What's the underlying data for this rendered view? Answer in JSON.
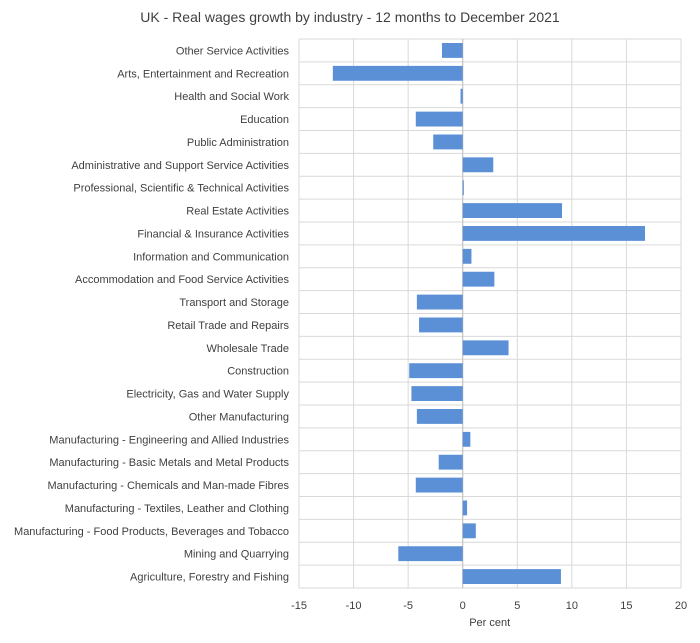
{
  "chart_data": {
    "type": "bar",
    "orientation": "horizontal",
    "title": "UK - Real wages growth by industry - 12 months to December 2021",
    "xlabel": "Per cent",
    "ylabel": "",
    "xlim": [
      -15,
      20
    ],
    "xticks": [
      -15,
      -10,
      -5,
      0,
      5,
      10,
      15,
      20
    ],
    "grid": true,
    "bar_color": "#5b8fd6",
    "categories": [
      "Other Service Activities",
      "Arts, Entertainment and Recreation",
      "Health and Social Work",
      "Education",
      "Public Administration",
      "Administrative and Support Service Activities",
      "Professional, Scientific & Technical Activities",
      "Real Estate Activities",
      "Financial & Insurance Activities",
      "Information and Communication",
      "Accommodation and Food Service Activities",
      "Transport and Storage",
      "Retail Trade and Repairs",
      "Wholesale Trade",
      "Construction",
      "Electricity, Gas and Water Supply",
      "Other Manufacturing",
      "Manufacturing - Engineering and Allied Industries",
      "Manufacturing - Basic Metals and Metal Products",
      "Manufacturing - Chemicals and Man-made Fibres",
      "Manufacturing - Textiles, Leather and Clothing",
      "Manufacturing - Food Products, Beverages and Tobacco",
      "Mining and Quarrying",
      "Agriculture, Forestry and Fishing"
    ],
    "values": [
      -1.9,
      -11.9,
      -0.2,
      -4.3,
      -2.7,
      2.8,
      0.1,
      9.1,
      16.7,
      0.8,
      2.9,
      -4.2,
      -4.0,
      4.2,
      -4.9,
      -4.7,
      -4.2,
      0.7,
      -2.2,
      -4.3,
      0.4,
      1.2,
      -5.9,
      9.0
    ]
  }
}
